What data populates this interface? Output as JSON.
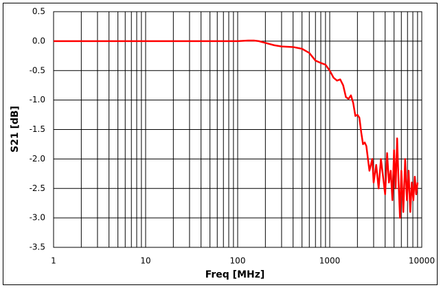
{
  "chart_data": {
    "type": "line",
    "x_label": "Freq [MHz]",
    "y_label": "S21 [dB]",
    "x": [
      1,
      10,
      30,
      50,
      100,
      130,
      150,
      170,
      200,
      250,
      300,
      400,
      500,
      600,
      700,
      800,
      900,
      1000,
      1100,
      1200,
      1300,
      1400,
      1500,
      1600,
      1700,
      1800,
      1900,
      2000,
      2100,
      2200,
      2300,
      2400,
      2500,
      2700,
      2900,
      3000,
      3200,
      3400,
      3600,
      3800,
      4000,
      4200,
      4400,
      4600,
      4800,
      5000,
      5200,
      5400,
      5600,
      5800,
      6000,
      6300,
      6600,
      6900,
      7200,
      7500,
      7800,
      8100,
      8400,
      8700,
      9000
    ],
    "series": [
      {
        "name": "S21",
        "color": "#ff0000",
        "values": [
          0,
          0,
          0,
          0,
          0,
          0.01,
          0.01,
          0,
          -0.03,
          -0.07,
          -0.09,
          -0.1,
          -0.13,
          -0.2,
          -0.33,
          -0.37,
          -0.4,
          -0.5,
          -0.62,
          -0.67,
          -0.65,
          -0.75,
          -0.95,
          -0.98,
          -0.92,
          -1.05,
          -1.27,
          -1.25,
          -1.3,
          -1.55,
          -1.75,
          -1.72,
          -1.78,
          -2.2,
          -2.0,
          -2.4,
          -2.1,
          -2.5,
          -2.0,
          -2.3,
          -2.6,
          -1.9,
          -2.4,
          -2.2,
          -2.7,
          -1.85,
          -2.5,
          -1.65,
          -2.4,
          -3.0,
          -2.2,
          -2.9,
          -2.0,
          -2.7,
          -2.2,
          -2.9,
          -2.4,
          -2.7,
          -2.3,
          -2.6,
          -2.4
        ]
      }
    ],
    "xlim": [
      1,
      10000
    ],
    "xticks": [
      1,
      10,
      100,
      1000,
      10000
    ],
    "xscale": "log",
    "ylim": [
      -3.5,
      0.5
    ],
    "yticks": [
      {
        "value": -3.5,
        "label": "-3.5"
      },
      {
        "value": -3,
        "label": "-3.0"
      },
      {
        "value": -2.5,
        "label": "-2.5"
      },
      {
        "value": -2,
        "label": "-2.0"
      },
      {
        "value": -1.5,
        "label": "-1.5"
      },
      {
        "value": -1,
        "label": "-1.0"
      },
      {
        "value": -0.5,
        "label": "-0.5"
      },
      {
        "value": 0,
        "label": "0.0"
      },
      0.5
    ],
    "grid": true
  }
}
